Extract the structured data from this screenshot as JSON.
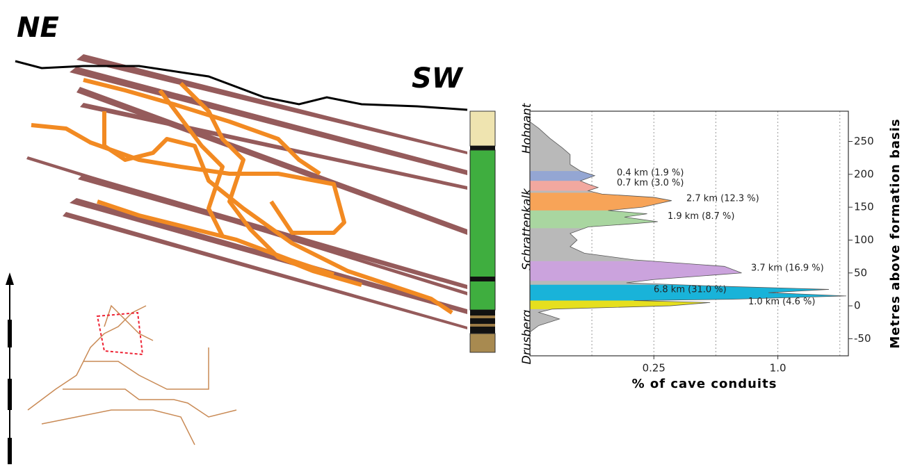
{
  "section": {
    "left_label": "NE",
    "right_label": "SW"
  },
  "column": {
    "formations": [
      "Hohgant",
      "Schrattenkalk",
      "Drusberg"
    ]
  },
  "chart_data": {
    "type": "profile",
    "xlabel": "% of cave conduits",
    "ylabel": "Metres above formation basis",
    "xscale": "log",
    "xlim": [
      0.0625,
      2.2
    ],
    "xticks": [
      {
        "value": 0.25,
        "label": "0.25"
      },
      {
        "value": 1,
        "label": "1.0"
      }
    ],
    "xgrid": [
      0.125,
      0.25,
      0.5,
      1,
      2
    ],
    "ylim": [
      -76,
      296
    ],
    "yticks": [
      -50,
      0,
      50,
      100,
      150,
      200,
      250
    ],
    "profile": {
      "color": "#b9b9b9",
      "heights": [
        -40,
        -30,
        -20,
        -15,
        -10,
        -5,
        0,
        5,
        8,
        10,
        15,
        20,
        25,
        30,
        35,
        40,
        50,
        60,
        70,
        80,
        90,
        100,
        110,
        120,
        125,
        128,
        135,
        140,
        145,
        150,
        160,
        165,
        170,
        175,
        180,
        185,
        190,
        198,
        205,
        215,
        230,
        240,
        255,
        270,
        280
      ],
      "values": [
        0.0625,
        0.069,
        0.087,
        0.078,
        0.069,
        0.08,
        0.3,
        0.469,
        0.2,
        0.6,
        2.15,
        0.9,
        1.77,
        0.5,
        0.184,
        0.25,
        0.667,
        0.55,
        0.2,
        0.115,
        0.098,
        0.106,
        0.098,
        0.12,
        0.2,
        0.261,
        0.18,
        0.232,
        0.15,
        0.22,
        0.305,
        0.25,
        0.14,
        0.12,
        0.134,
        0.12,
        0.11,
        0.129,
        0.11,
        0.098,
        0.098,
        0.09,
        0.078,
        0.069,
        0.0625
      ]
    },
    "series": [
      {
        "name": "0.4 km (1.9 %)",
        "color": "#94a6d3",
        "range": [
          190,
          205
        ]
      },
      {
        "name": "0.7 km (3.0 %)",
        "color": "#f2a89f",
        "range": [
          175,
          190
        ]
      },
      {
        "name": "2.7 km (12.3 %)",
        "color": "#f7a458",
        "range": [
          145,
          172
        ]
      },
      {
        "name": "1.9 km (8.7 %)",
        "color": "#a9d6a0",
        "range": [
          118,
          145
        ]
      },
      {
        "name": "3.7 km (16.9 %)",
        "color": "#cba3dd",
        "range": [
          38,
          68
        ]
      },
      {
        "name": "6.8 km (31.0 %)",
        "color": "#19b3d9",
        "range": [
          8,
          32
        ]
      },
      {
        "name": "1.0 km (4.6 %)",
        "color": "#e6df1e",
        "range": [
          -5,
          8
        ]
      }
    ]
  }
}
